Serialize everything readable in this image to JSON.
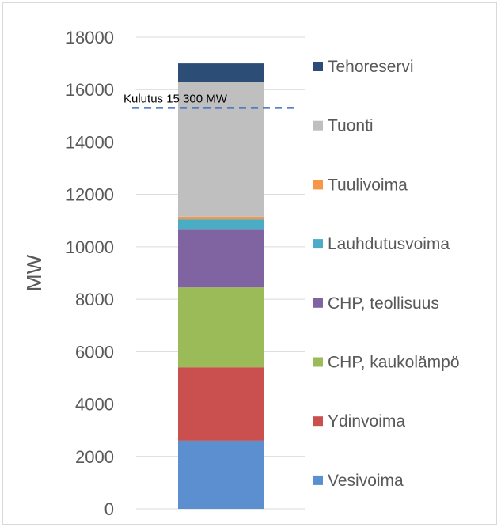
{
  "chart_data": {
    "type": "bar",
    "stacked": true,
    "categories": [
      ""
    ],
    "ylabel": "MW",
    "ylim": [
      0,
      18000
    ],
    "yticks": [
      0,
      2000,
      4000,
      6000,
      8000,
      10000,
      12000,
      14000,
      16000,
      18000
    ],
    "grid": true,
    "legend_position": "right",
    "series": [
      {
        "name": "Vesivoima",
        "values": [
          2600
        ],
        "color": "#5b8fd0"
      },
      {
        "name": "Ydinvoima",
        "values": [
          2800
        ],
        "color": "#c9504f"
      },
      {
        "name": "CHP, kaukolämpö",
        "values": [
          3050
        ],
        "color": "#9bbb59"
      },
      {
        "name": "CHP, teollisuus",
        "values": [
          2200
        ],
        "color": "#8064a2"
      },
      {
        "name": "Lauhdutusvoima",
        "values": [
          400
        ],
        "color": "#4bacc6"
      },
      {
        "name": "Tuulivoima",
        "values": [
          100
        ],
        "color": "#f79646"
      },
      {
        "name": "Tuonti",
        "values": [
          5150
        ],
        "color": "#bfbfbf"
      },
      {
        "name": "Tehoreservi",
        "values": [
          700
        ],
        "color": "#2c4d75"
      }
    ],
    "annotations": [
      {
        "label": "Kulutus 15 300 MW",
        "y": 15300,
        "style": "dashed",
        "color": "#4472c4"
      }
    ]
  }
}
